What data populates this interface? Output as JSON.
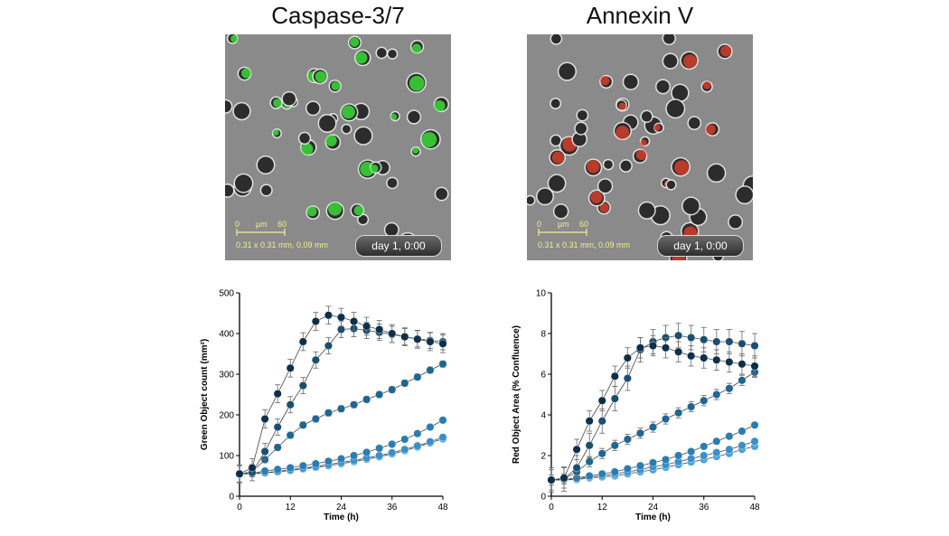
{
  "panels": [
    {
      "title": "Caspase-3/7",
      "image": {
        "fluorescence": "green",
        "scale_min": "0",
        "scale_unit": "µm",
        "scale_max": "60",
        "dimensions": "0.31 x 0.31 mm, 0.09 mm",
        "timestamp": "day 1, 0:00"
      }
    },
    {
      "title": "Annexin V",
      "image": {
        "fluorescence": "red",
        "scale_min": "0",
        "scale_unit": "µm",
        "scale_max": "60",
        "dimensions": "0.31 x 0.31 mm, 0.09 mm",
        "timestamp": "day 1, 0:00"
      }
    }
  ],
  "colors": {
    "green_fluor": "#3df03a",
    "red_fluor": "#e8402a",
    "series": [
      "#0d2f4a",
      "#1a4f70",
      "#1f6691",
      "#2a7db2",
      "#3b8fc9",
      "#4ea2da"
    ]
  },
  "chart_data": [
    {
      "type": "line",
      "xlabel": "Time (h)",
      "ylabel": "Green Object count (mm²)",
      "xlim": [
        0,
        48
      ],
      "ylim": [
        0,
        500
      ],
      "xticks": [
        0,
        12,
        24,
        36,
        48
      ],
      "yticks": [
        0,
        100,
        200,
        300,
        400,
        500
      ],
      "x": [
        0,
        3,
        6,
        9,
        12,
        15,
        18,
        21,
        24,
        27,
        30,
        33,
        36,
        39,
        42,
        45,
        48
      ],
      "series": [
        {
          "values": [
            55,
            70,
            190,
            252,
            315,
            380,
            430,
            445,
            440,
            430,
            418,
            410,
            400,
            392,
            386,
            380,
            375
          ],
          "error": 22
        },
        {
          "values": [
            55,
            58,
            110,
            170,
            225,
            272,
            335,
            370,
            410,
            412,
            408,
            403,
            398,
            392,
            387,
            383,
            380
          ],
          "error": 20
        },
        {
          "values": [
            55,
            60,
            90,
            120,
            150,
            175,
            190,
            205,
            215,
            225,
            238,
            250,
            262,
            278,
            293,
            310,
            325
          ],
          "error": 8
        },
        {
          "values": [
            55,
            57,
            62,
            66,
            70,
            75,
            80,
            86,
            92,
            100,
            108,
            118,
            128,
            140,
            154,
            170,
            187
          ],
          "error": 6
        },
        {
          "values": [
            55,
            56,
            58,
            61,
            65,
            69,
            73,
            78,
            83,
            88,
            94,
            100,
            107,
            115,
            124,
            134,
            145
          ],
          "error": 6
        },
        {
          "values": [
            55,
            55,
            57,
            60,
            63,
            67,
            71,
            75,
            80,
            85,
            91,
            97,
            104,
            112,
            121,
            131,
            141
          ],
          "error": 6
        }
      ]
    },
    {
      "type": "line",
      "xlabel": "Time (h)",
      "ylabel": "Red Object Area (% Confluence)",
      "xlim": [
        0,
        48
      ],
      "ylim": [
        0,
        10
      ],
      "xticks": [
        0,
        12,
        24,
        36,
        48
      ],
      "yticks": [
        0,
        2,
        4,
        6,
        8,
        10
      ],
      "x": [
        0,
        3,
        6,
        9,
        12,
        15,
        18,
        21,
        24,
        27,
        30,
        33,
        36,
        39,
        42,
        45,
        48
      ],
      "series": [
        {
          "values": [
            0.8,
            0.9,
            2.3,
            3.7,
            4.7,
            5.9,
            6.8,
            7.3,
            7.4,
            7.3,
            7.1,
            6.9,
            6.8,
            6.7,
            6.6,
            6.5,
            6.4
          ],
          "error": 0.5
        },
        {
          "values": [
            0.8,
            0.85,
            1.4,
            2.5,
            3.7,
            4.8,
            5.8,
            7.2,
            7.6,
            7.8,
            7.9,
            7.8,
            7.7,
            7.6,
            7.6,
            7.5,
            7.4
          ],
          "error": 0.6
        },
        {
          "values": [
            0.8,
            0.85,
            1.2,
            1.7,
            2.1,
            2.5,
            2.8,
            3.1,
            3.4,
            3.8,
            4.1,
            4.4,
            4.7,
            5.0,
            5.3,
            5.7,
            6.1
          ],
          "error": 0.25
        },
        {
          "values": [
            0.8,
            0.82,
            0.9,
            1.0,
            1.1,
            1.2,
            1.35,
            1.5,
            1.65,
            1.8,
            2.0,
            2.2,
            2.45,
            2.7,
            2.95,
            3.2,
            3.5
          ],
          "error": 0.12
        },
        {
          "values": [
            0.8,
            0.8,
            0.85,
            0.95,
            1.0,
            1.1,
            1.2,
            1.3,
            1.45,
            1.55,
            1.7,
            1.85,
            2.0,
            2.15,
            2.3,
            2.5,
            2.7
          ],
          "error": 0.1
        },
        {
          "values": [
            0.8,
            0.8,
            0.82,
            0.9,
            0.95,
            1.0,
            1.1,
            1.2,
            1.3,
            1.42,
            1.55,
            1.68,
            1.8,
            1.95,
            2.1,
            2.3,
            2.45
          ],
          "error": 0.1
        }
      ]
    }
  ]
}
